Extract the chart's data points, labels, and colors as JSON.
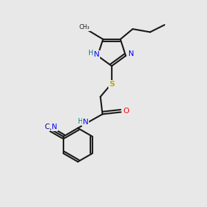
{
  "background_color": "#e8e8e8",
  "bond_color": "#1a1a1a",
  "N_color": "#0000ff",
  "O_color": "#ff0000",
  "S_color": "#bbaa00",
  "H_color": "#008080",
  "C_color": "#000080",
  "figsize": [
    3.0,
    3.0
  ],
  "dpi": 100,
  "xlim": [
    0,
    10
  ],
  "ylim": [
    0,
    10
  ]
}
